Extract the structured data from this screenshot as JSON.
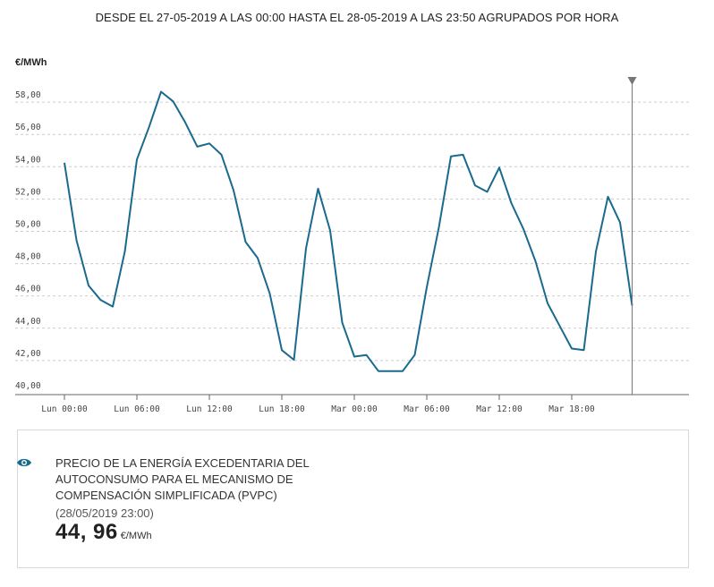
{
  "header": {
    "subtitle": "DESDE EL 27-05-2019 A LAS 00:00 HASTA EL 28-05-2019 A LAS 23:50 AGRUPADOS POR HORA"
  },
  "colors": {
    "line": "#1a6a8e",
    "grid": "#cccccc",
    "axis": "#666666",
    "marker": "#777777"
  },
  "chart_data": {
    "type": "line",
    "ylabel": "€/MWh",
    "ylim": [
      40,
      58
    ],
    "y_ticks": [
      "40,00",
      "42,00",
      "44,00",
      "46,00",
      "48,00",
      "50,00",
      "52,00",
      "54,00",
      "56,00",
      "58,00"
    ],
    "x_ticks": [
      "Lun 00:00",
      "Lun 06:00",
      "Lun 12:00",
      "Lun 18:00",
      "Mar 00:00",
      "Mar 06:00",
      "Mar 12:00",
      "Mar 18:00"
    ],
    "grid": "horizontal dashed",
    "series": [
      {
        "values": [
          53.8,
          49.0,
          46.2,
          45.3,
          44.9,
          48.3,
          54.0,
          56.0,
          58.2,
          57.6,
          56.3,
          54.8,
          55.0,
          54.3,
          52.1,
          48.9,
          47.9,
          45.7,
          42.2,
          41.6,
          48.5,
          52.2,
          49.6,
          43.9,
          41.8,
          41.9,
          40.9,
          40.9,
          40.9,
          41.9,
          46.1,
          49.8,
          54.2,
          54.3,
          52.4,
          52.0,
          53.5,
          51.3,
          49.7,
          47.7,
          45.1,
          43.7,
          42.3,
          42.2,
          48.3,
          51.7,
          50.1,
          44.96
        ]
      }
    ],
    "highlight": {
      "index": 47,
      "value": 44.96
    }
  },
  "info": {
    "title": "PRECIO DE LA ENERGÍA EXCEDENTARIA DEL AUTOCONSUMO PARA EL MECANISMO DE COMPENSACIÓN SIMPLIFICADA (PVPC)",
    "date": "(28/05/2019 23:00)",
    "value": "44, 96",
    "unit": "€/MWh",
    "icon": "eye-icon"
  }
}
